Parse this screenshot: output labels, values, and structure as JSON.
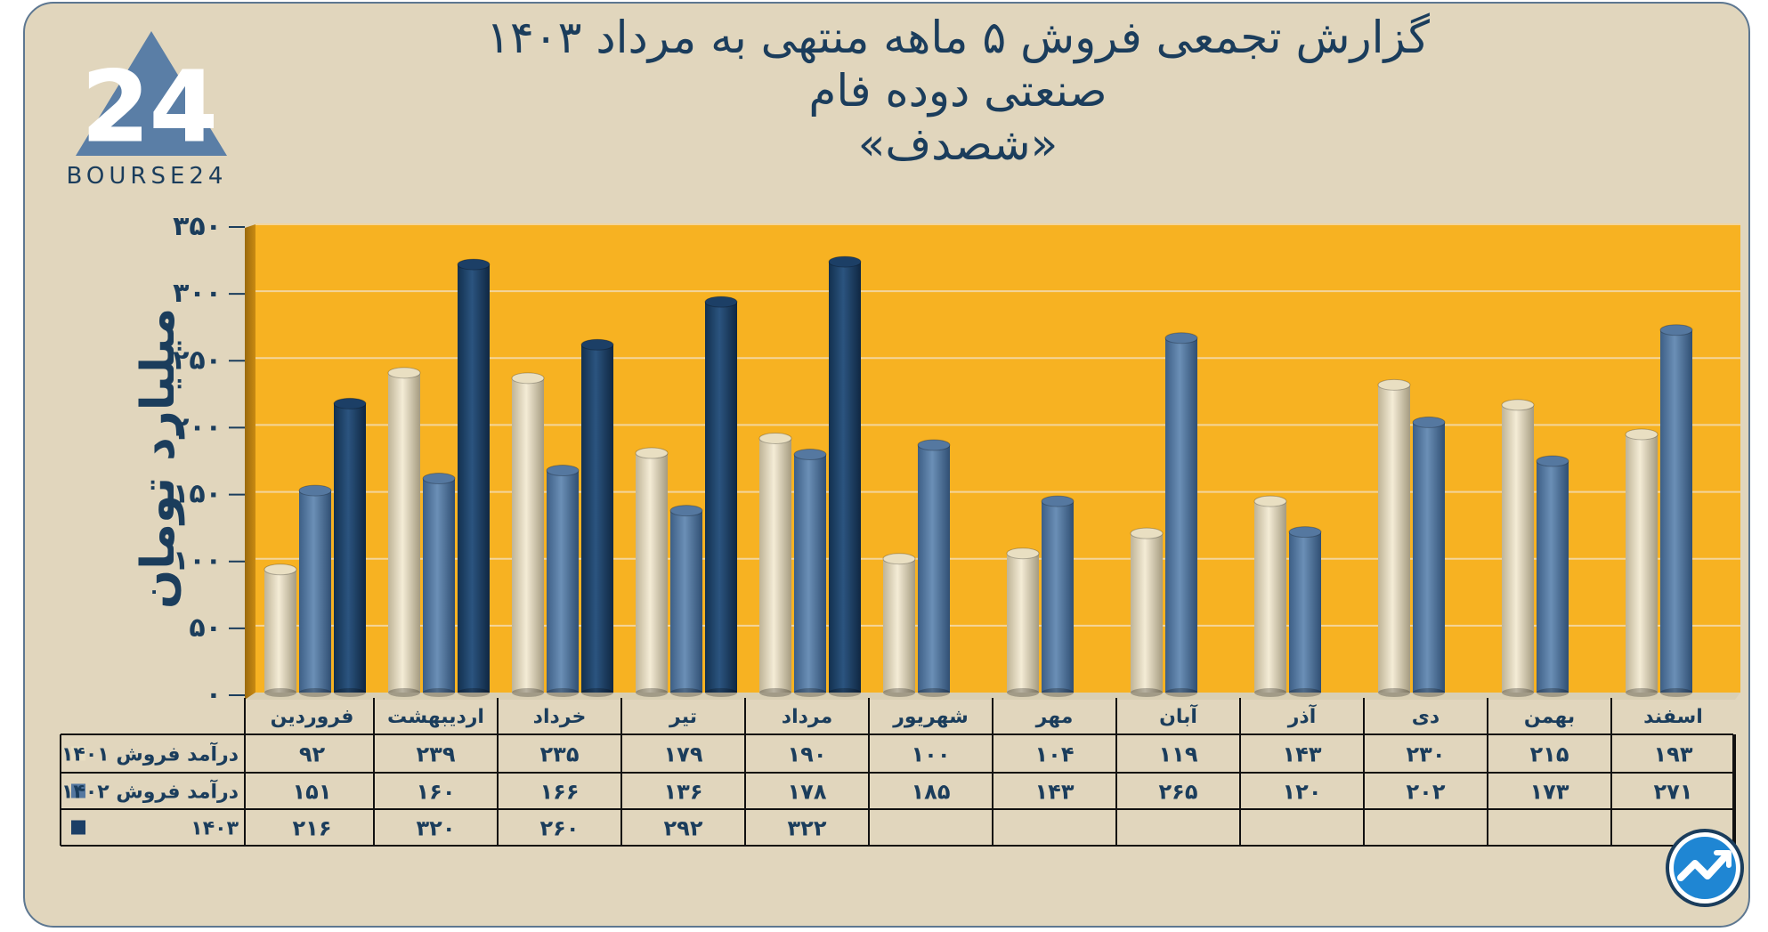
{
  "title": {
    "line1": "گزارش تجمعی فروش ۵ ماهه منتهی به مرداد ۱۴۰۳",
    "line2": "صنعتی دوده فام",
    "line3": "«شصدف»"
  },
  "logo": {
    "text": "BOURSE24"
  },
  "chart_data": {
    "type": "bar",
    "title": "گزارش تجمعی فروش ۵ ماهه منتهی به مرداد ۱۴۰۳",
    "ylabel": "میلیارد تومان",
    "ylim": [
      0,
      350
    ],
    "yticks": [
      0,
      50,
      100,
      150,
      200,
      250,
      300,
      350
    ],
    "ytick_labels": [
      "۰",
      "۵۰",
      "۱۰۰",
      "۱۵۰",
      "۲۰۰",
      "۲۵۰",
      "۳۰۰",
      "۳۵۰"
    ],
    "grid": true,
    "categories": [
      "فروردین",
      "اردیبهشت",
      "خرداد",
      "تیر",
      "مرداد",
      "شهریور",
      "مهر",
      "آبان",
      "آذر",
      "دی",
      "بهمن",
      "اسفند"
    ],
    "series": [
      {
        "name": "درآمد فروش ۱۴۰۱",
        "color": "#e9dfc2",
        "values": [
          92,
          239,
          235,
          179,
          190,
          100,
          104,
          119,
          143,
          230,
          215,
          193
        ],
        "labels": [
          "۹۲",
          "۲۳۹",
          "۲۳۵",
          "۱۷۹",
          "۱۹۰",
          "۱۰۰",
          "۱۰۴",
          "۱۱۹",
          "۱۴۳",
          "۲۳۰",
          "۲۱۵",
          "۱۹۳"
        ]
      },
      {
        "name": "درآمد فروش ۱۴۰۲",
        "color": "#5578a0",
        "values": [
          151,
          160,
          166,
          136,
          178,
          185,
          143,
          265,
          120,
          202,
          173,
          271
        ],
        "labels": [
          "۱۵۱",
          "۱۶۰",
          "۱۶۶",
          "۱۳۶",
          "۱۷۸",
          "۱۸۵",
          "۱۴۳",
          "۲۶۵",
          "۱۲۰",
          "۲۰۲",
          "۱۷۳",
          "۲۷۱"
        ]
      },
      {
        "name": "۱۴۰۳",
        "color": "#1c3f66",
        "values": [
          216,
          320,
          260,
          292,
          322,
          null,
          null,
          null,
          null,
          null,
          null,
          null
        ],
        "labels": [
          "۲۱۶",
          "۳۲۰",
          "۲۶۰",
          "۲۹۲",
          "۳۲۲",
          "",
          "",
          "",
          "",
          "",
          "",
          ""
        ]
      }
    ],
    "colors": {
      "plot_background": "#f7b222",
      "grid": "#f3d59b",
      "axis_text": "#1b3d5c"
    }
  }
}
